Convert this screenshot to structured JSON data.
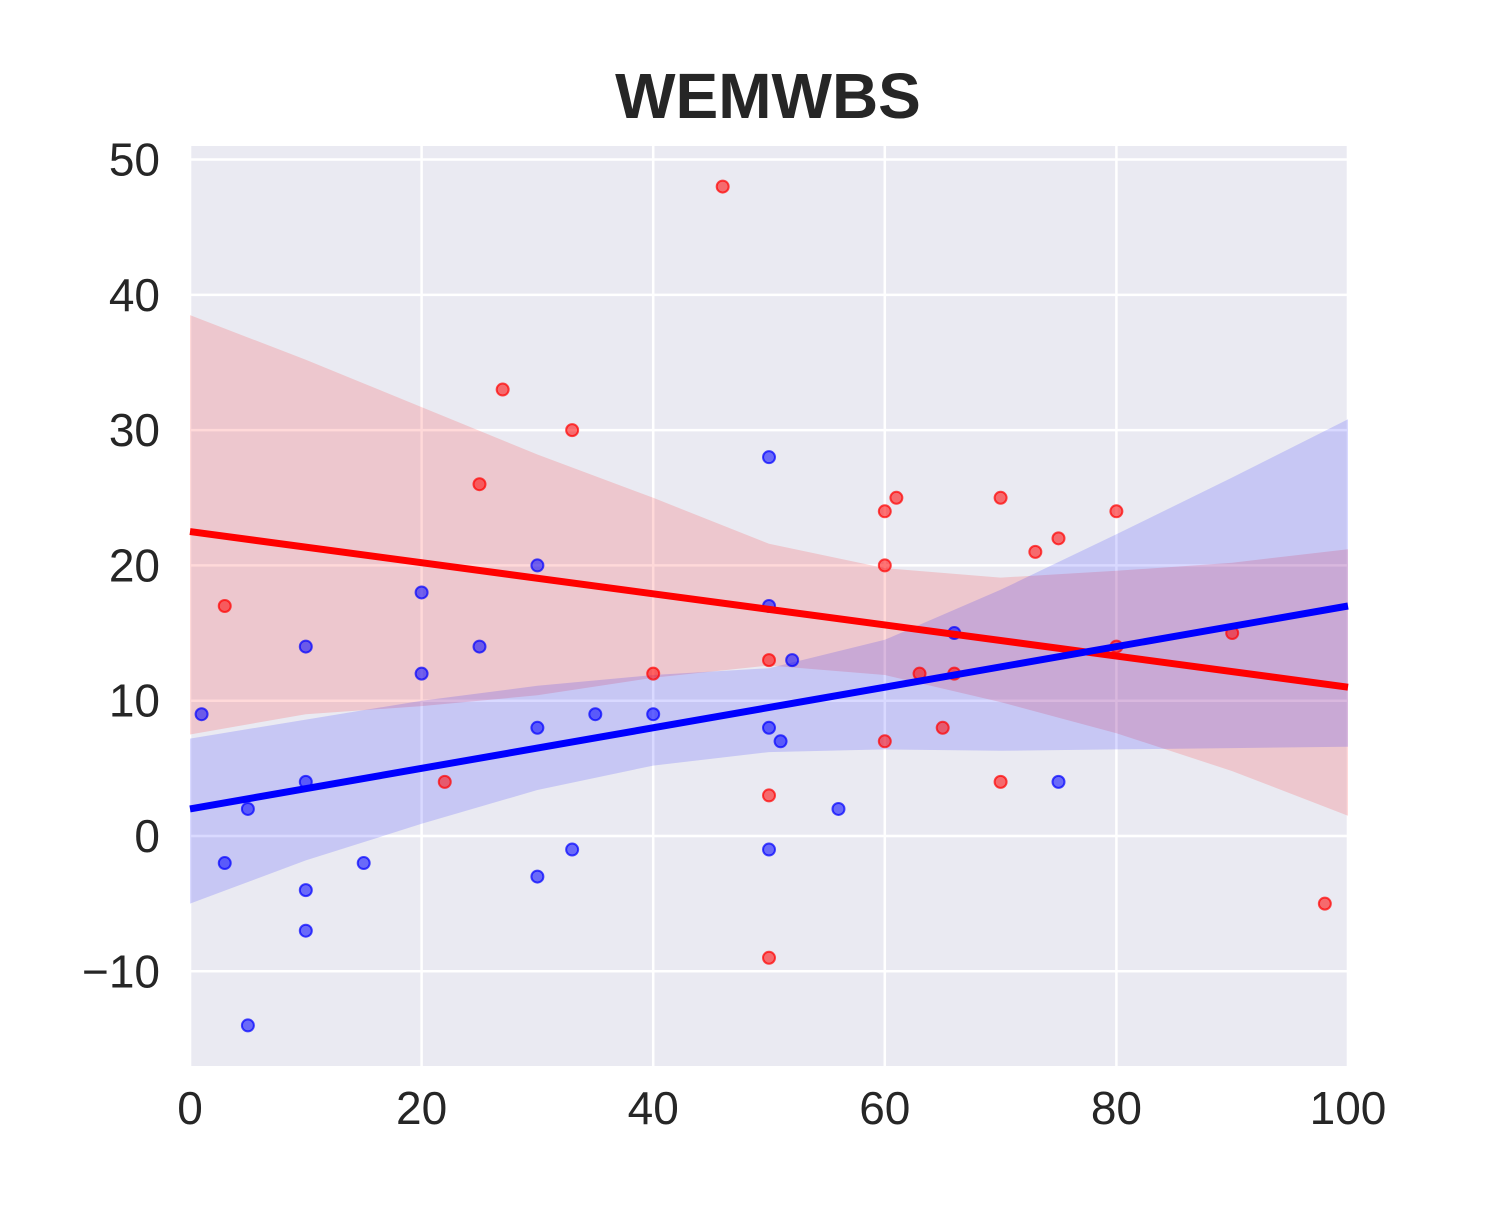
{
  "chart_data": {
    "type": "scatter",
    "title": "WEMWBS",
    "xlabel": "",
    "ylabel": "",
    "xlim": [
      0,
      100
    ],
    "ylim": [
      -17,
      51
    ],
    "x_ticks": [
      0,
      20,
      40,
      60,
      80,
      100
    ],
    "y_ticks": [
      -10,
      0,
      10,
      20,
      30,
      40,
      50
    ],
    "x_tick_labels": [
      "0",
      "20",
      "40",
      "60",
      "80",
      "100"
    ],
    "y_tick_labels": [
      "−10",
      "0",
      "10",
      "20",
      "30",
      "40",
      "50"
    ],
    "grid": true,
    "background": "#eaeaf2",
    "series": [
      {
        "color": "#ff0000",
        "points": [
          [
            3,
            17
          ],
          [
            22,
            4
          ],
          [
            25,
            26
          ],
          [
            27,
            33
          ],
          [
            33,
            30
          ],
          [
            40,
            12
          ],
          [
            46,
            48
          ],
          [
            50,
            13
          ],
          [
            50,
            3
          ],
          [
            50,
            -9
          ],
          [
            60,
            24
          ],
          [
            60,
            20
          ],
          [
            60,
            7
          ],
          [
            61,
            25
          ],
          [
            63,
            12
          ],
          [
            65,
            8
          ],
          [
            66,
            12
          ],
          [
            70,
            25
          ],
          [
            70,
            4
          ],
          [
            73,
            21
          ],
          [
            75,
            22
          ],
          [
            80,
            24
          ],
          [
            80,
            14
          ],
          [
            90,
            15
          ],
          [
            98,
            -5
          ]
        ],
        "regression": {
          "intercept": 22.5,
          "slope": -0.115
        },
        "ci_band": {
          "x": [
            0,
            10,
            20,
            30,
            40,
            50,
            60,
            70,
            80,
            90,
            100
          ],
          "upper": [
            38.5,
            35.2,
            31.7,
            28.2,
            25.0,
            21.6,
            19.8,
            19.1,
            19.6,
            20.2,
            21.2
          ],
          "lower": [
            7.5,
            9.0,
            9.6,
            10.4,
            11.7,
            12.6,
            11.9,
            9.9,
            7.6,
            4.8,
            1.5
          ]
        }
      },
      {
        "color": "#0000ff",
        "points": [
          [
            1,
            9
          ],
          [
            3,
            -2
          ],
          [
            5,
            2
          ],
          [
            5,
            -14
          ],
          [
            10,
            14
          ],
          [
            10,
            4
          ],
          [
            10,
            -4
          ],
          [
            10,
            -7
          ],
          [
            15,
            -2
          ],
          [
            20,
            18
          ],
          [
            20,
            12
          ],
          [
            25,
            14
          ],
          [
            30,
            20
          ],
          [
            30,
            8
          ],
          [
            30,
            -3
          ],
          [
            33,
            -1
          ],
          [
            35,
            9
          ],
          [
            40,
            9
          ],
          [
            50,
            28
          ],
          [
            50,
            17
          ],
          [
            50,
            8
          ],
          [
            50,
            -1
          ],
          [
            51,
            7
          ],
          [
            52,
            13
          ],
          [
            56,
            2
          ],
          [
            66,
            15
          ],
          [
            75,
            4
          ]
        ],
        "regression": {
          "intercept": 2.0,
          "slope": 0.15
        },
        "ci_band": {
          "x": [
            0,
            10,
            20,
            30,
            40,
            50,
            60,
            70,
            80,
            90,
            100
          ],
          "upper": [
            7.2,
            8.6,
            10.0,
            11.1,
            11.9,
            12.4,
            14.5,
            18.2,
            22.3,
            26.5,
            30.8
          ],
          "lower": [
            -5.0,
            -1.8,
            0.9,
            3.4,
            5.2,
            6.2,
            6.4,
            6.3,
            6.4,
            6.5,
            6.6
          ]
        }
      }
    ]
  }
}
